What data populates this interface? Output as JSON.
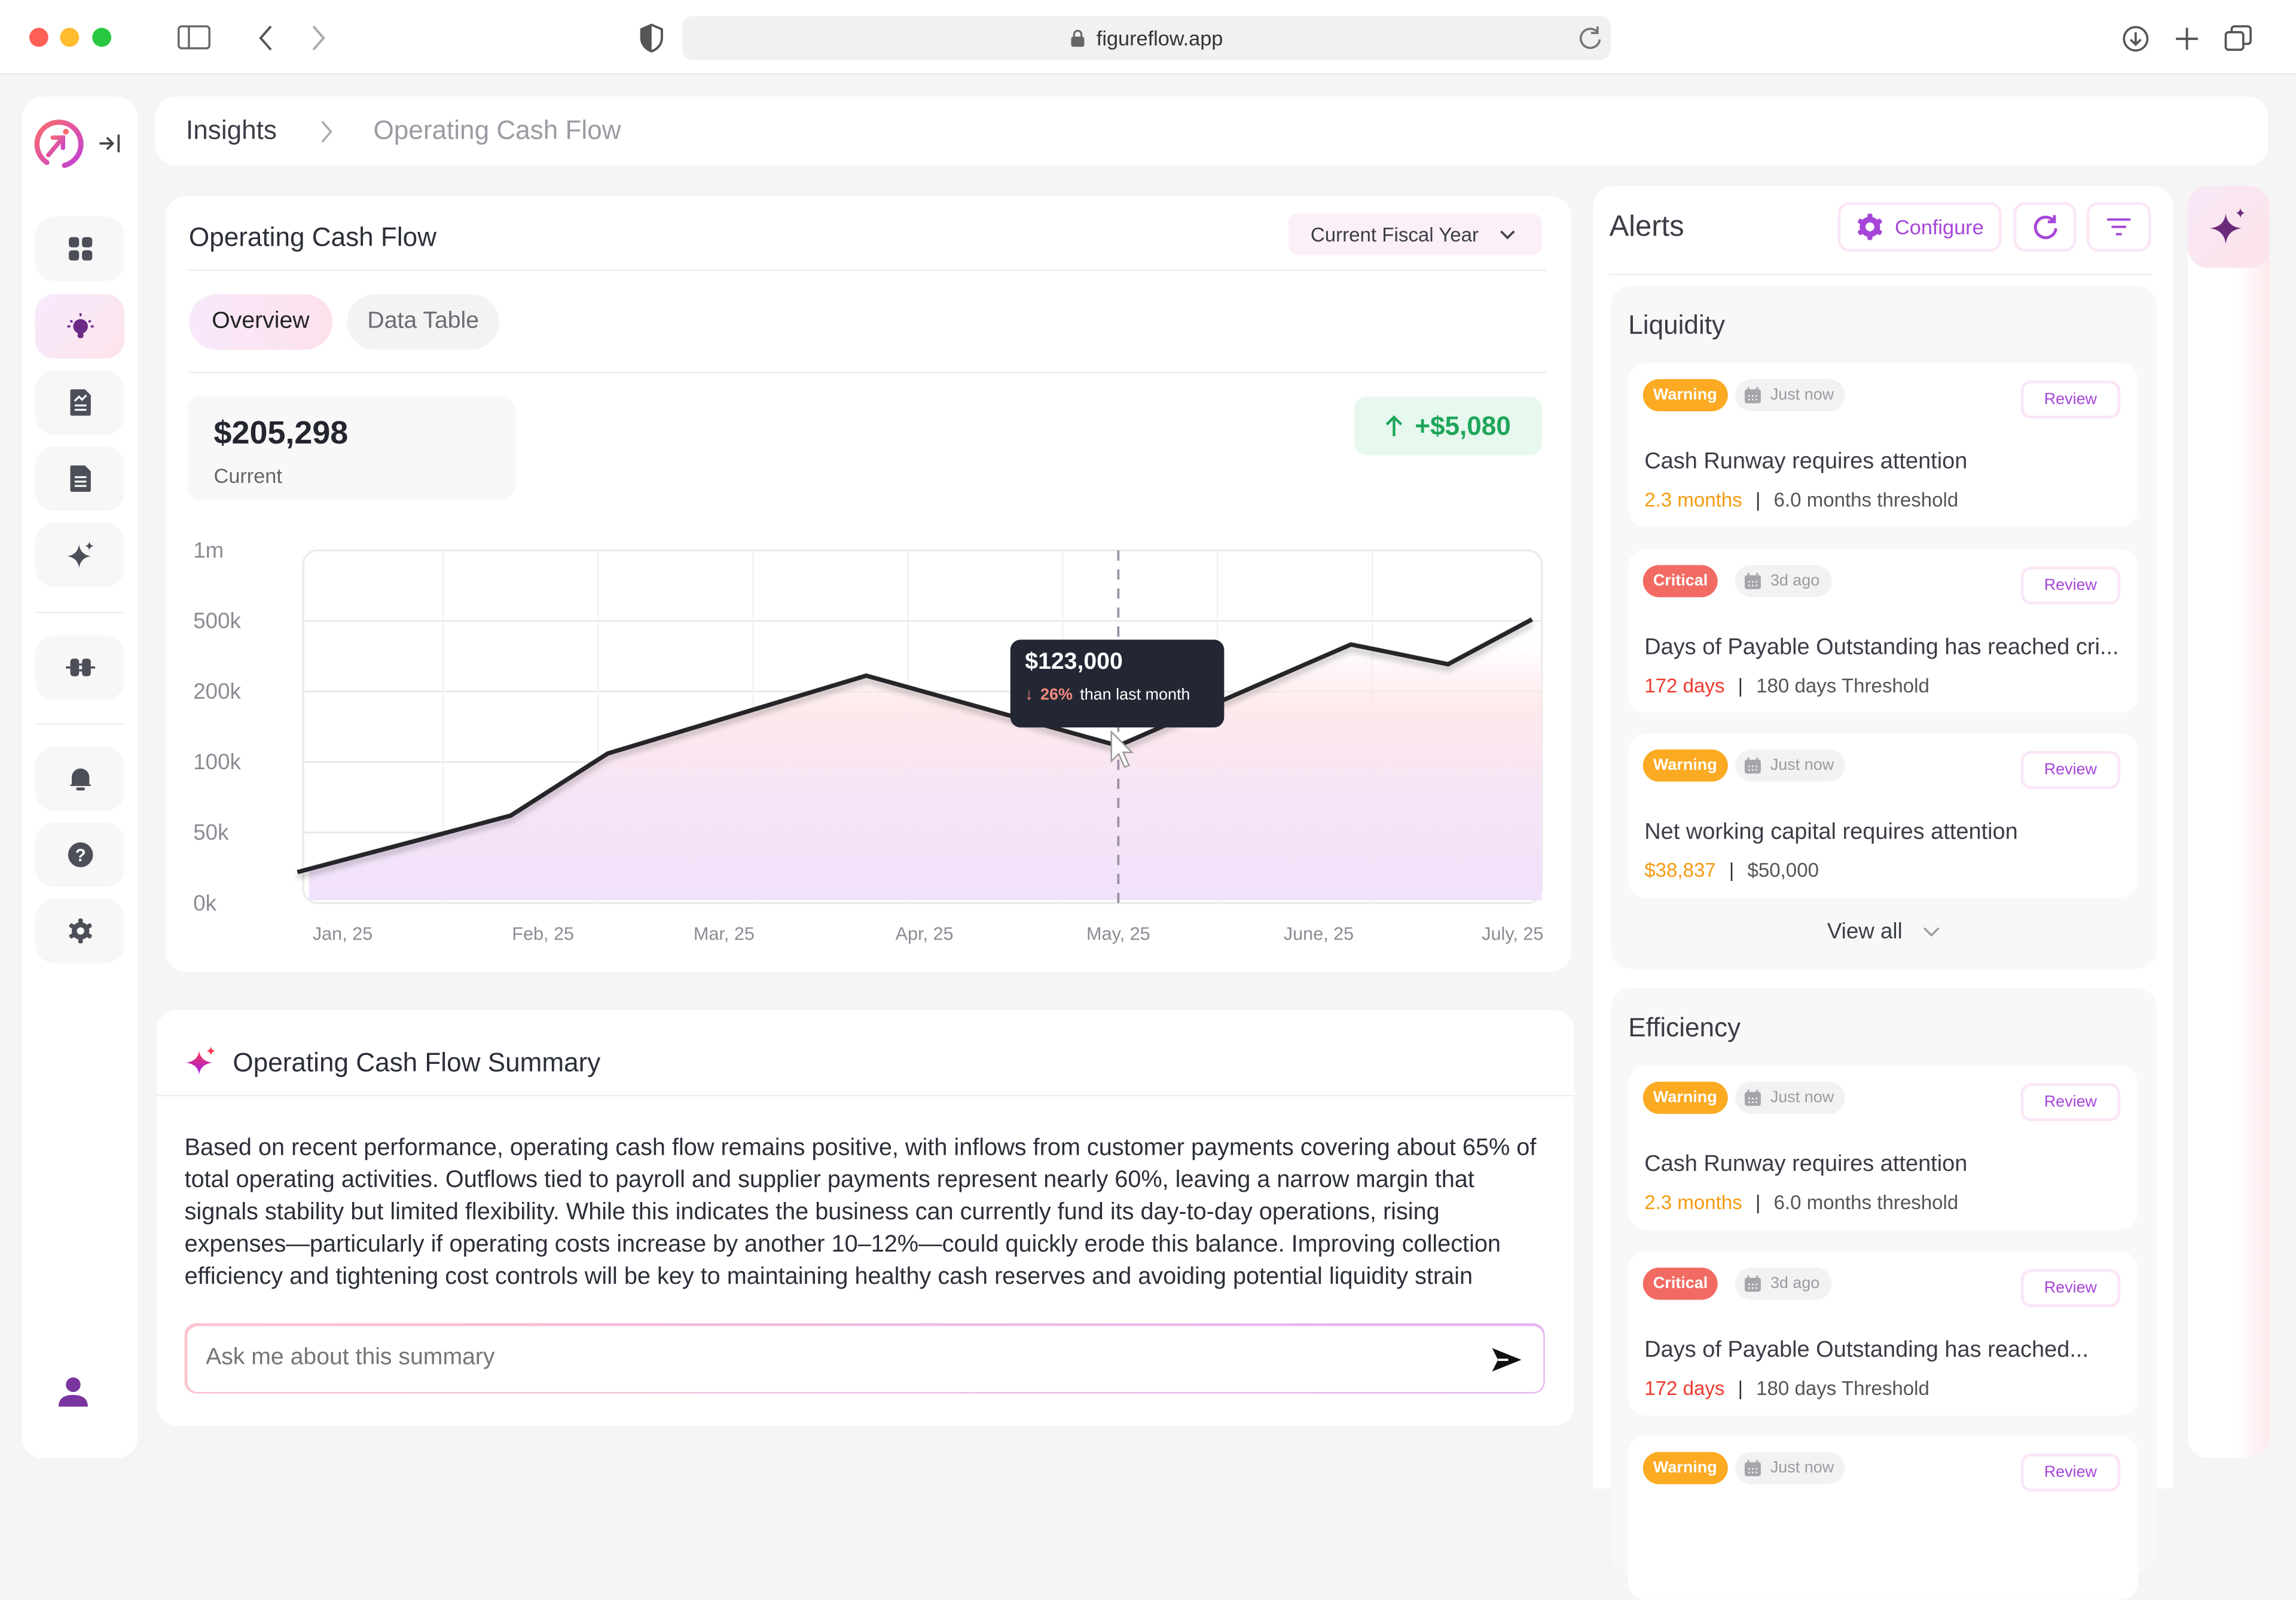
{
  "browser": {
    "url": "figureflow.app"
  },
  "sidebar": {
    "items": [
      {
        "name": "dashboard",
        "icon": "grid-icon"
      },
      {
        "name": "insights",
        "icon": "lightbulb-icon",
        "active": true
      },
      {
        "name": "reports",
        "icon": "chart-document-icon"
      },
      {
        "name": "documents",
        "icon": "document-icon"
      },
      {
        "name": "ai",
        "icon": "sparkle-icon"
      },
      {
        "name": "integrations",
        "icon": "plug-icon"
      },
      {
        "name": "notifications",
        "icon": "bell-icon"
      },
      {
        "name": "help",
        "icon": "help-icon"
      },
      {
        "name": "settings",
        "icon": "gear-icon"
      }
    ]
  },
  "breadcrumb": {
    "root": "Insights",
    "current": "Operating Cash Flow"
  },
  "chart_card": {
    "title": "Operating Cash Flow",
    "period": "Current Fiscal Year",
    "tabs": [
      "Overview",
      "Data Table"
    ],
    "active_tab": "Overview",
    "current_value": "$205,298",
    "current_label": "Current",
    "change": "+$5,080",
    "tooltip": {
      "value": "$123,000",
      "change": "26%",
      "suffix": "than last month"
    }
  },
  "chart_data": {
    "type": "area",
    "y_ticks": [
      "0k",
      "50k",
      "100k",
      "200k",
      "500k",
      "1m"
    ],
    "y_tick_values": [
      0,
      50000,
      100000,
      200000,
      500000,
      1000000
    ],
    "x_ticks": [
      "Jan, 25",
      "Feb, 25",
      "Mar, 25",
      "Apr, 25",
      "May, 25",
      "June, 25",
      "July, 25"
    ],
    "x_tick_dates": [
      "2025-01-01",
      "2025-02-01",
      "2025-03-01",
      "2025-04-01",
      "2025-05-01",
      "2025-06-01",
      "2025-07-01"
    ],
    "points": [
      {
        "x": "2024-12-25",
        "y": 22000
      },
      {
        "x": "2025-01-27",
        "y": 62000
      },
      {
        "x": "2025-02-11",
        "y": 112000
      },
      {
        "x": "2025-03-23",
        "y": 267000
      },
      {
        "x": "2025-05-01",
        "y": 123000
      },
      {
        "x": "2025-06-06",
        "y": 400000
      },
      {
        "x": "2025-06-21",
        "y": 316000
      },
      {
        "x": "2025-07-04",
        "y": 510000
      }
    ],
    "highlight": "2025-05-01",
    "grid": true,
    "line_color": "#25272c"
  },
  "summary": {
    "title": "Operating Cash Flow Summary",
    "text": "Based on recent performance, operating cash flow remains positive, with inflows from customer payments covering about 65% of total operating activities. Outflows tied to payroll and supplier payments represent nearly 60%, leaving a narrow margin that signals stability but limited flexibility. While this indicates the business can currently fund its day-to-day operations, rising expenses—particularly if operating costs increase by another 10–12%—could quickly erode this balance. Improving collection efficiency and tightening cost controls will be key to maintaining healthy cash reserves and avoiding potential liquidity strain",
    "input_placeholder": "Ask me about this summary"
  },
  "alerts": {
    "title": "Alerts",
    "configure": "Configure",
    "view_all": "View all",
    "colors": {
      "warning": "#fbaa22",
      "critical": "#f26b63",
      "warning_text": "#f59a12",
      "critical_text": "#ee3b2f"
    },
    "groups": [
      {
        "title": "Liquidity",
        "items": [
          {
            "level": "Warning",
            "time": "Just now",
            "title": "Cash Runway requires attention",
            "value": "2.3 months",
            "threshold": "6.0 months threshold",
            "review": "Review"
          },
          {
            "level": "Critical",
            "time": "3d ago",
            "title": "Days of Payable Outstanding has reached cri...",
            "value": "172 days",
            "threshold": "180 days Threshold",
            "review": "Review"
          },
          {
            "level": "Warning",
            "time": "Just now",
            "title": "Net working capital requires attention",
            "value": "$38,837",
            "threshold": "$50,000",
            "review": "Review"
          }
        ]
      },
      {
        "title": "Efficiency",
        "items": [
          {
            "level": "Warning",
            "time": "Just now",
            "title": "Cash Runway requires attention",
            "value": "2.3 months",
            "threshold": "6.0 months threshold",
            "review": "Review"
          },
          {
            "level": "Critical",
            "time": "3d ago",
            "title": "Days of Payable Outstanding has reached...",
            "value": "172 days",
            "threshold": "180 days Threshold",
            "review": "Review"
          },
          {
            "level": "Warning",
            "time": "Just now",
            "title": "",
            "value": "",
            "threshold": "",
            "review": "Review"
          }
        ]
      }
    ]
  }
}
